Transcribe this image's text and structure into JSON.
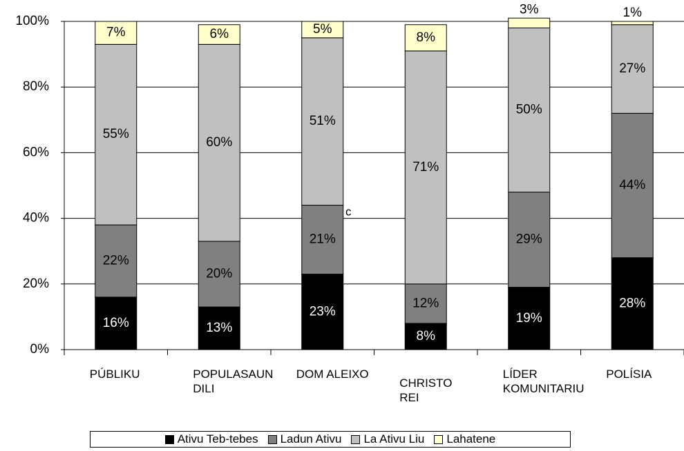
{
  "chart_data": {
    "type": "stacked_bar",
    "categories": [
      "PÚBLIKU",
      "POPULASAUN DILI",
      "DOM ALEIXO",
      "CHRISTO REI",
      "LÍDER KOMUNITARIU",
      "POLÍSIA"
    ],
    "series": [
      {
        "name": "Ativu Teb-tebes",
        "color": "#000000",
        "values": [
          16,
          13,
          23,
          8,
          19,
          28
        ],
        "value_labels": [
          "16%",
          "13%",
          "23%",
          "8%",
          "19%",
          "28%"
        ]
      },
      {
        "name": "Ladun Ativu",
        "color": "#808080",
        "values": [
          22,
          20,
          21,
          12,
          29,
          44
        ],
        "value_labels": [
          "22%",
          "20%",
          "21%",
          "12%",
          "29%",
          "44%"
        ]
      },
      {
        "name": "La Ativu Liu",
        "color": "#c0c0c0",
        "values": [
          55,
          60,
          51,
          71,
          50,
          27
        ],
        "value_labels": [
          "55%",
          "60%",
          "51%",
          "71%",
          "50%",
          "27%"
        ]
      },
      {
        "name": "Lahatene",
        "color": "#ffffcc",
        "values": [
          7,
          6,
          5,
          8,
          3,
          1
        ],
        "value_labels": [
          "7%",
          "6%",
          "5%",
          "8%",
          "3%",
          "1%"
        ]
      }
    ],
    "ylim": [
      0,
      100
    ],
    "yticks": [
      {
        "value": 0,
        "label": "0%"
      },
      {
        "value": 20,
        "label": "20%"
      },
      {
        "value": 40,
        "label": "40%"
      },
      {
        "value": 60,
        "label": "60%"
      },
      {
        "value": 80,
        "label": "80%"
      },
      {
        "value": 100,
        "label": "100%"
      }
    ],
    "grid": true,
    "legend": "bottom",
    "annotation": "c"
  }
}
